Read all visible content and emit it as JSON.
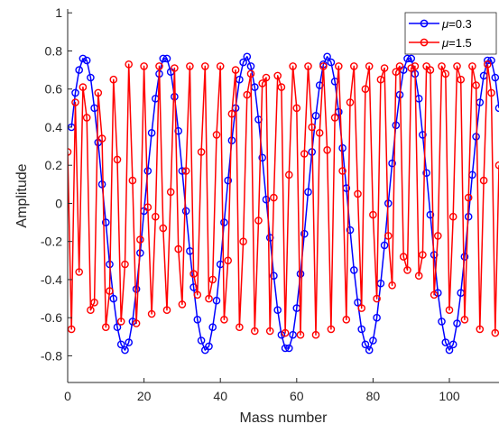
{
  "chart_data": {
    "type": "line",
    "xlabel": "Mass number",
    "ylabel": "Amplitude",
    "xlim": [
      0,
      113
    ],
    "ylim": [
      -0.94,
      1.02
    ],
    "xticks": [
      0,
      20,
      40,
      60,
      80,
      100
    ],
    "yticks": [
      -0.8,
      -0.6,
      -0.4,
      -0.2,
      0,
      0.2,
      0.4,
      0.6,
      0.8,
      1
    ],
    "ytick_labels": [
      "-0.8",
      "-0.6",
      "-0.4",
      "-0.2",
      "0",
      "0.2",
      "0.4",
      "0.6",
      "0.8",
      "1"
    ],
    "grid": false,
    "legend_position": "top-right",
    "legend": {
      "items": [
        {
          "mu_symbol": "μ",
          "text": "=0.3"
        },
        {
          "mu_symbol": "μ",
          "text": "=1.5"
        }
      ]
    },
    "series": [
      {
        "name": "μ=0.3",
        "color": "#0000ff",
        "marker": "circle",
        "x": [
          1,
          2,
          3,
          4,
          5,
          6,
          7,
          8,
          9,
          10,
          11,
          12,
          13,
          14,
          15,
          16,
          17,
          18,
          19,
          20,
          21,
          22,
          23,
          24,
          25,
          26,
          27,
          28,
          29,
          30,
          31,
          32,
          33,
          34,
          35,
          36,
          37,
          38,
          39,
          40,
          41,
          42,
          43,
          44,
          45,
          46,
          47,
          48,
          49,
          50,
          51,
          52,
          53,
          54,
          55,
          56,
          57,
          58,
          59,
          60,
          61,
          62,
          63,
          64,
          65,
          66,
          67,
          68,
          69,
          70,
          71,
          72,
          73,
          74,
          75,
          76,
          77,
          78,
          79,
          80,
          81,
          82,
          83,
          84,
          85,
          86,
          87,
          88,
          89,
          90,
          91,
          92,
          93,
          94,
          95,
          96,
          97,
          98,
          99,
          100,
          101,
          102,
          103,
          104,
          105,
          106,
          107,
          108,
          109,
          110,
          111,
          112,
          113
        ],
        "y": [
          0.4,
          0.58,
          0.7,
          0.76,
          0.75,
          0.66,
          0.5,
          0.32,
          0.1,
          -0.1,
          -0.32,
          -0.5,
          -0.65,
          -0.74,
          -0.77,
          -0.73,
          -0.62,
          -0.45,
          -0.26,
          -0.04,
          0.17,
          0.37,
          0.55,
          0.68,
          0.76,
          0.76,
          0.69,
          0.56,
          0.38,
          0.17,
          -0.04,
          -0.25,
          -0.44,
          -0.61,
          -0.72,
          -0.77,
          -0.75,
          -0.65,
          -0.51,
          -0.32,
          -0.1,
          0.12,
          0.33,
          0.5,
          0.65,
          0.74,
          0.77,
          0.72,
          0.61,
          0.44,
          0.24,
          0.02,
          -0.18,
          -0.38,
          -0.56,
          -0.69,
          -0.76,
          -0.76,
          -0.69,
          -0.55,
          -0.37,
          -0.16,
          0.06,
          0.27,
          0.46,
          0.62,
          0.73,
          0.77,
          0.74,
          0.64,
          0.48,
          0.29,
          0.08,
          -0.14,
          -0.35,
          -0.52,
          -0.66,
          -0.74,
          -0.77,
          -0.72,
          -0.6,
          -0.42,
          -0.22,
          0.0,
          0.21,
          0.41,
          0.57,
          0.7,
          0.76,
          0.76,
          0.68,
          0.55,
          0.36,
          0.16,
          -0.06,
          -0.27,
          -0.47,
          -0.62,
          -0.73,
          -0.77,
          -0.74,
          -0.63,
          -0.47,
          -0.28,
          -0.07,
          0.15,
          0.35,
          0.53,
          0.67,
          0.75,
          0.75,
          0.66,
          0.5
        ]
      },
      {
        "name": "μ=1.5",
        "color": "#ff0000",
        "marker": "circle",
        "x": [
          0,
          1,
          2,
          3,
          4,
          5,
          6,
          7,
          8,
          9,
          10,
          11,
          12,
          13,
          14,
          15,
          16,
          17,
          18,
          19,
          20,
          21,
          22,
          23,
          24,
          25,
          26,
          27,
          28,
          29,
          30,
          31,
          32,
          33,
          34,
          35,
          36,
          37,
          38,
          39,
          40,
          41,
          42,
          43,
          44,
          45,
          46,
          47,
          48,
          49,
          50,
          51,
          52,
          53,
          54,
          55,
          56,
          57,
          58,
          59,
          60,
          61,
          62,
          63,
          64,
          65,
          66,
          67,
          68,
          69,
          70,
          71,
          72,
          73,
          74,
          75,
          76,
          77,
          78,
          79,
          80,
          81,
          82,
          83,
          84,
          85,
          86,
          87,
          88,
          89,
          90,
          91,
          92,
          93,
          94,
          95,
          96,
          97,
          98,
          99,
          100,
          101,
          102,
          103,
          104,
          105,
          106,
          107,
          108,
          109,
          110,
          111,
          112,
          113
        ],
        "y": [
          0.27,
          -0.66,
          0.53,
          -0.36,
          0.61,
          0.45,
          -0.56,
          -0.52,
          0.58,
          0.34,
          -0.65,
          -0.46,
          0.65,
          0.23,
          -0.62,
          -0.32,
          0.73,
          0.12,
          -0.63,
          -0.19,
          0.72,
          -0.02,
          -0.58,
          -0.07,
          0.72,
          -0.13,
          -0.56,
          0.06,
          0.71,
          -0.24,
          -0.53,
          0.17,
          0.72,
          -0.37,
          -0.48,
          0.27,
          0.72,
          -0.5,
          -0.4,
          0.36,
          0.72,
          -0.61,
          -0.3,
          0.47,
          0.7,
          -0.65,
          -0.2,
          0.57,
          0.68,
          -0.67,
          -0.09,
          0.63,
          0.66,
          -0.67,
          0.03,
          0.67,
          0.61,
          -0.68,
          0.15,
          0.72,
          0.5,
          -0.69,
          0.26,
          0.72,
          0.4,
          -0.69,
          0.37,
          0.72,
          0.28,
          -0.66,
          0.45,
          0.72,
          0.17,
          -0.61,
          0.53,
          0.72,
          0.05,
          -0.55,
          0.6,
          0.72,
          -0.06,
          -0.5,
          0.65,
          0.71,
          -0.17,
          -0.43,
          0.69,
          0.72,
          -0.28,
          -0.35,
          0.71,
          0.72,
          -0.38,
          -0.27,
          0.72,
          0.7,
          -0.48,
          -0.17,
          0.72,
          0.68,
          -0.56,
          -0.07,
          0.72,
          0.65,
          -0.61,
          0.03,
          0.72,
          0.62,
          -0.66,
          0.12,
          0.73,
          0.58,
          -0.68,
          0.2
        ]
      }
    ]
  }
}
